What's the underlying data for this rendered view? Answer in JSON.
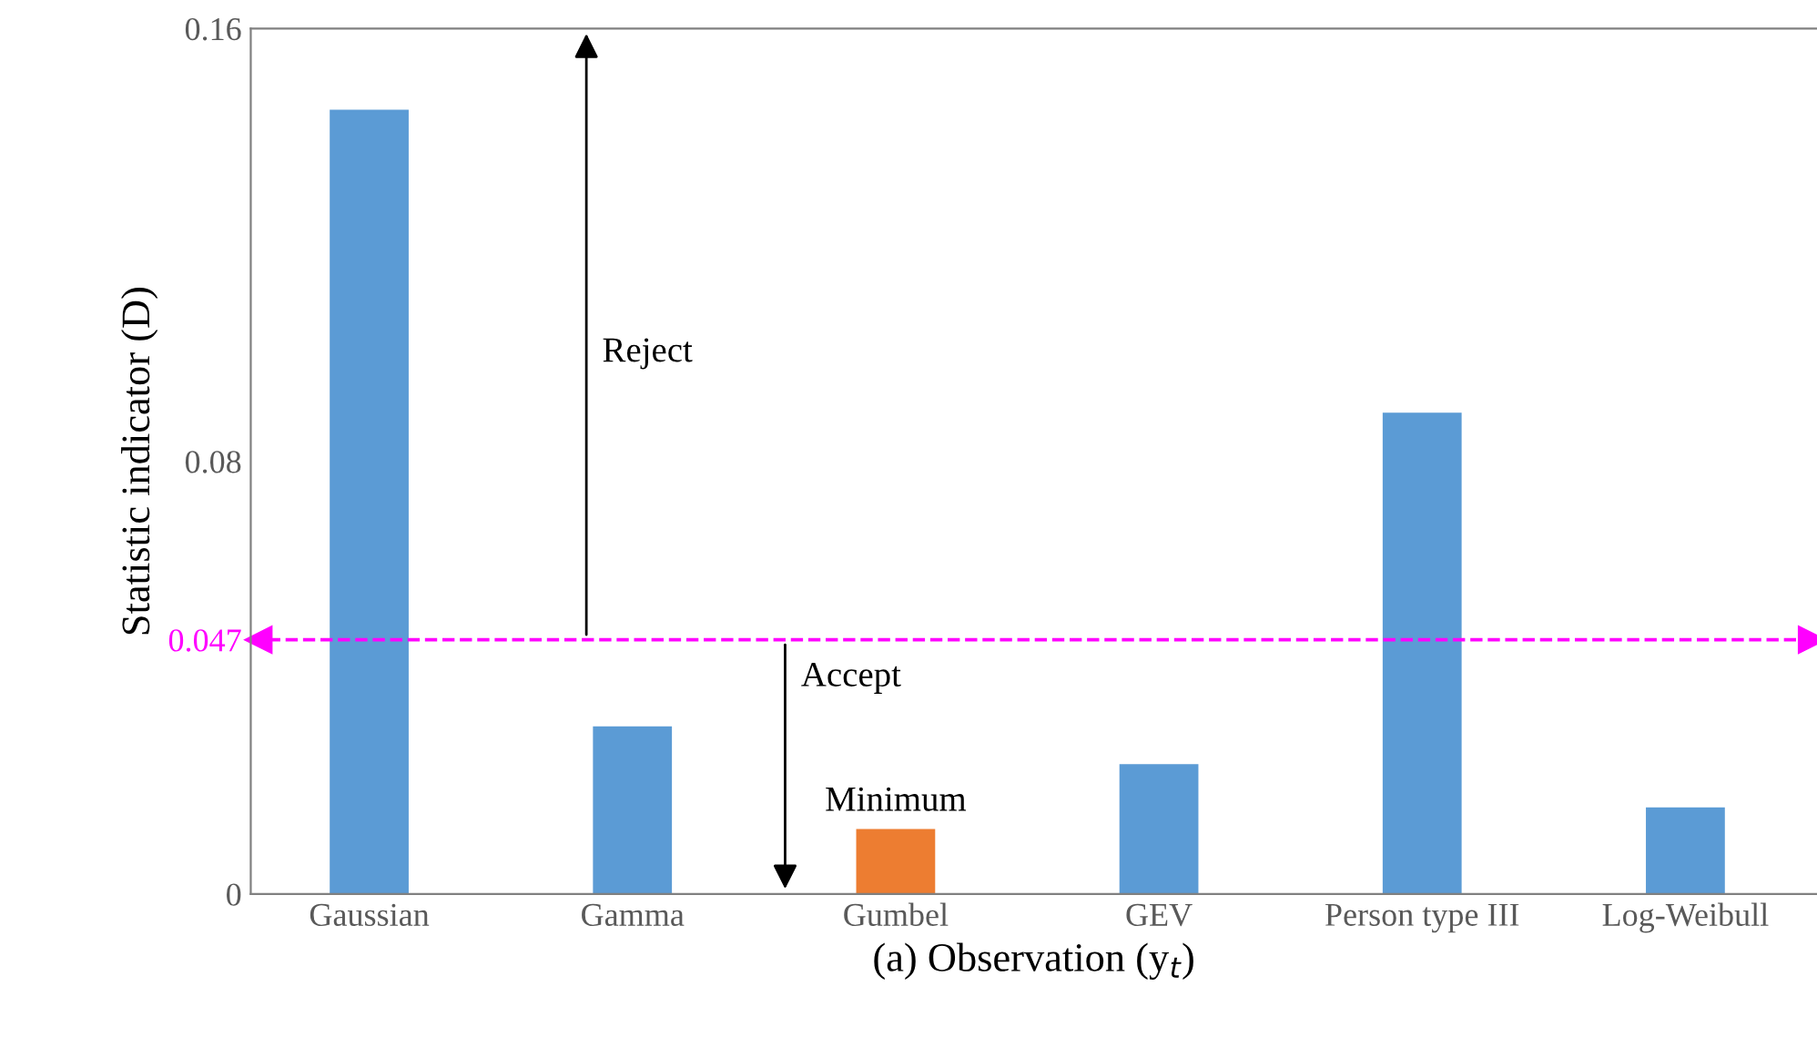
{
  "chart_data": {
    "type": "bar",
    "xlabel": "(a) Observation (y$_{t}$)",
    "ylabel": "Statistic indicator (D)",
    "categories": [
      "Gaussian",
      "Gamma",
      "Gumbel",
      "GEV",
      "Person type III",
      "Log-Weibull"
    ],
    "values": [
      0.145,
      0.031,
      0.012,
      0.024,
      0.089,
      0.016
    ],
    "colors": [
      "#5b9bd5",
      "#5b9bd5",
      "#ed7d31",
      "#5b9bd5",
      "#5b9bd5",
      "#5b9bd5"
    ],
    "ylim": [
      0,
      0.16
    ],
    "yticks": [
      0,
      0.047,
      0.08,
      0.16
    ],
    "ref_lines": [
      {
        "axis": "y",
        "value": 0.047,
        "color": "#ff00ff",
        "line_style": "dashed"
      }
    ],
    "annotations": [
      "Reject",
      "Accept",
      {
        "text": "Minimum",
        "x": "Gumbel",
        "y": 0.012
      }
    ],
    "grid": false
  }
}
